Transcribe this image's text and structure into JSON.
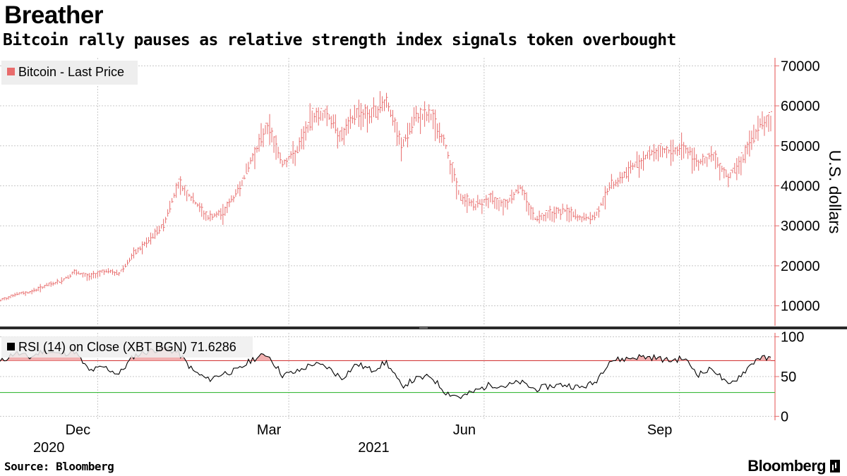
{
  "header": {
    "title": "Breather",
    "subtitle": "Bitcoin rally pauses as relative strength index signals token overbought"
  },
  "footer": {
    "source": "Source: Bloomberg",
    "logo": "Bloomberg"
  },
  "colors": {
    "price": "#e86c6c",
    "rsi": "#000000",
    "overbought": "#d43c3c",
    "oversold": "#3cba3c",
    "overbought_fill": "#f2b0b0",
    "grid": "#c8c8c8",
    "axis": "#e86c6c"
  },
  "chart_data": [
    {
      "type": "line",
      "style": "ohlc-bars",
      "title": "",
      "legend": "Bitcoin - Last Price",
      "legend_position": "top-left",
      "ylabel": "U.S. dollars",
      "ylim": [
        5000,
        72000
      ],
      "yticks": [
        10000,
        20000,
        30000,
        40000,
        50000,
        60000,
        70000
      ],
      "grid": true,
      "x_ticks": [
        {
          "label": "Dec",
          "date": "2020-12-01"
        },
        {
          "label": "Mar",
          "date": "2021-03-01"
        },
        {
          "label": "Jun",
          "date": "2021-06-01"
        },
        {
          "label": "Sep",
          "date": "2021-09-01"
        }
      ],
      "year_labels": [
        {
          "label": "2020",
          "date": "2020-11-08"
        },
        {
          "label": "2021",
          "date": "2021-04-10"
        }
      ],
      "x_range": [
        "2020-10-16",
        "2021-10-16"
      ],
      "series": [
        {
          "name": "Bitcoin - Last Price",
          "x": [
            "2020-10-16",
            "2020-10-23",
            "2020-10-30",
            "2020-11-06",
            "2020-11-13",
            "2020-11-20",
            "2020-11-27",
            "2020-12-04",
            "2020-12-11",
            "2020-12-18",
            "2020-12-25",
            "2021-01-01",
            "2021-01-08",
            "2021-01-15",
            "2021-01-22",
            "2021-01-29",
            "2021-02-05",
            "2021-02-12",
            "2021-02-19",
            "2021-02-26",
            "2021-03-05",
            "2021-03-12",
            "2021-03-19",
            "2021-03-26",
            "2021-04-02",
            "2021-04-09",
            "2021-04-16",
            "2021-04-23",
            "2021-04-30",
            "2021-05-07",
            "2021-05-14",
            "2021-05-21",
            "2021-05-28",
            "2021-06-04",
            "2021-06-11",
            "2021-06-18",
            "2021-06-25",
            "2021-07-02",
            "2021-07-09",
            "2021-07-16",
            "2021-07-23",
            "2021-07-30",
            "2021-08-06",
            "2021-08-13",
            "2021-08-20",
            "2021-08-27",
            "2021-09-03",
            "2021-09-10",
            "2021-09-17",
            "2021-09-24",
            "2021-10-01",
            "2021-10-08",
            "2021-10-14"
          ],
          "values": [
            11400,
            12900,
            13500,
            15000,
            16100,
            18500,
            17400,
            18900,
            18200,
            23100,
            26400,
            30500,
            41000,
            36500,
            32200,
            33500,
            39000,
            47500,
            55800,
            45900,
            49000,
            57800,
            58500,
            52500,
            58900,
            58200,
            62000,
            50000,
            57700,
            58000,
            50000,
            37000,
            35500,
            37000,
            35800,
            40000,
            32000,
            33500,
            34000,
            32000,
            32300,
            40000,
            43000,
            46600,
            49000,
            48900,
            50000,
            46300,
            47700,
            42500,
            47500,
            55000,
            57300
          ]
        }
      ]
    },
    {
      "type": "line",
      "legend": "RSI (14)  on Close (XBT BGN) 71.6286",
      "legend_position": "top-left",
      "ylim": [
        -5,
        105
      ],
      "yticks": [
        0,
        50,
        100
      ],
      "overbought_level": 70,
      "oversold_level": 30,
      "grid": true,
      "series": [
        {
          "name": "RSI (14)  on Close (XBT BGN)",
          "x": [
            "2020-10-16",
            "2020-10-23",
            "2020-10-30",
            "2020-11-06",
            "2020-11-13",
            "2020-11-20",
            "2020-11-27",
            "2020-12-04",
            "2020-12-11",
            "2020-12-18",
            "2020-12-25",
            "2021-01-01",
            "2021-01-08",
            "2021-01-15",
            "2021-01-22",
            "2021-01-29",
            "2021-02-05",
            "2021-02-12",
            "2021-02-19",
            "2021-02-26",
            "2021-03-05",
            "2021-03-12",
            "2021-03-19",
            "2021-03-26",
            "2021-04-02",
            "2021-04-09",
            "2021-04-16",
            "2021-04-23",
            "2021-04-30",
            "2021-05-07",
            "2021-05-14",
            "2021-05-21",
            "2021-05-28",
            "2021-06-04",
            "2021-06-11",
            "2021-06-18",
            "2021-06-25",
            "2021-07-02",
            "2021-07-09",
            "2021-07-16",
            "2021-07-23",
            "2021-07-30",
            "2021-08-06",
            "2021-08-13",
            "2021-08-20",
            "2021-08-27",
            "2021-09-03",
            "2021-09-10",
            "2021-09-17",
            "2021-09-24",
            "2021-10-01",
            "2021-10-08",
            "2021-10-14"
          ],
          "values": [
            68,
            80,
            74,
            83,
            78,
            82,
            57,
            62,
            53,
            76,
            82,
            86,
            80,
            57,
            46,
            54,
            58,
            72,
            78,
            52,
            56,
            66,
            62,
            48,
            66,
            58,
            68,
            38,
            47,
            50,
            30,
            24,
            32,
            40,
            38,
            43,
            34,
            38,
            40,
            36,
            42,
            70,
            72,
            75,
            74,
            70,
            73,
            53,
            60,
            38,
            55,
            74,
            72
          ]
        }
      ]
    }
  ]
}
